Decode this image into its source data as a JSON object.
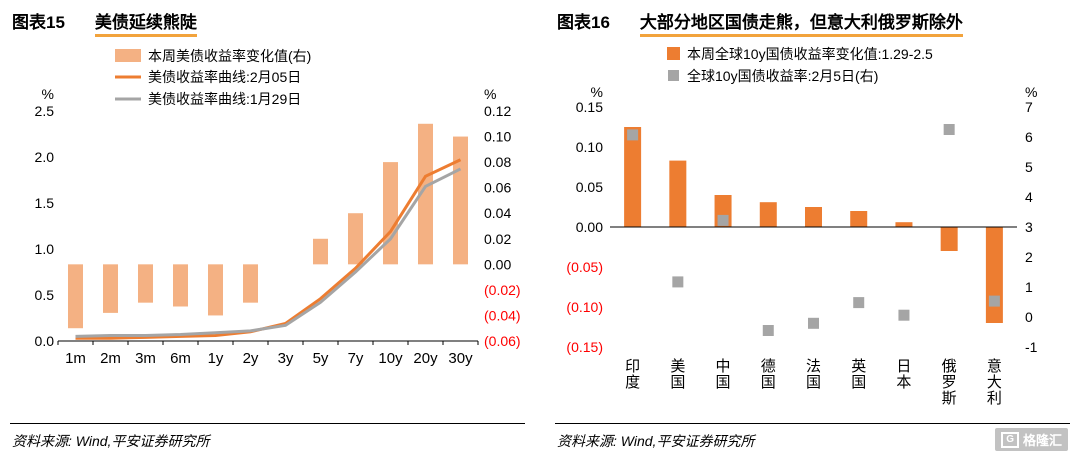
{
  "panels": [
    {
      "figure_label": "图表15",
      "title": "美债延续熊陡",
      "source": "资料来源: Wind,平安证券研究所"
    },
    {
      "figure_label": "图表16",
      "title": "大部分地区国债走熊，但意大利俄罗斯除外",
      "source": "资料来源: Wind,平安证券研究所"
    }
  ],
  "watermark": {
    "g": "G",
    "text": "格隆汇"
  },
  "chart_data": [
    {
      "type": "bar-line-combo",
      "title": "美债延续熊陡",
      "categories": [
        "1m",
        "2m",
        "3m",
        "6m",
        "1y",
        "2y",
        "3y",
        "5y",
        "7y",
        "10y",
        "20y",
        "30y"
      ],
      "bars": {
        "name": "本周美债收益率变化值(右)",
        "axis": "right",
        "color": "#F4B183",
        "values": [
          -0.05,
          -0.038,
          -0.03,
          -0.033,
          -0.04,
          -0.03,
          0,
          0.02,
          0.04,
          0.08,
          0.11,
          0.1
        ]
      },
      "lines": [
        {
          "name": "美债收益率曲线:2月05日",
          "color": "#ED7D31",
          "values": [
            0.03,
            0.03,
            0.04,
            0.05,
            0.06,
            0.1,
            0.19,
            0.46,
            0.79,
            1.19,
            1.79,
            1.97
          ]
        },
        {
          "name": "美债收益率曲线:1月29日",
          "color": "#A5A5A5",
          "values": [
            0.05,
            0.06,
            0.06,
            0.07,
            0.09,
            0.11,
            0.17,
            0.42,
            0.75,
            1.11,
            1.68,
            1.87
          ]
        }
      ],
      "left_axis": {
        "unit": "%",
        "min": 0,
        "max": 2.5,
        "ticks": [
          {
            "v": 2.5,
            "label": "2.5"
          },
          {
            "v": 2.0,
            "label": "2.0"
          },
          {
            "v": 1.5,
            "label": "1.5"
          },
          {
            "v": 1.0,
            "label": "1.0"
          },
          {
            "v": 0.5,
            "label": "0.5"
          },
          {
            "v": 0.0,
            "label": "0.0"
          }
        ]
      },
      "right_axis": {
        "unit": "%",
        "min": -0.06,
        "max": 0.12,
        "ticks": [
          {
            "v": 0.12,
            "label": "0.12"
          },
          {
            "v": 0.1,
            "label": "0.10"
          },
          {
            "v": 0.08,
            "label": "0.08"
          },
          {
            "v": 0.06,
            "label": "0.06"
          },
          {
            "v": 0.04,
            "label": "0.04"
          },
          {
            "v": 0.02,
            "label": "0.02"
          },
          {
            "v": 0.0,
            "label": "0.00"
          },
          {
            "v": -0.02,
            "label": "(0.02)",
            "negative": true
          },
          {
            "v": -0.04,
            "label": "(0.04)",
            "negative": true
          },
          {
            "v": -0.06,
            "label": "(0.06)",
            "negative": true
          }
        ]
      }
    },
    {
      "type": "bar-scatter-combo",
      "title": "大部分地区国债走熊，但意大利俄罗斯除外",
      "categories": [
        "印度",
        "美国",
        "中国",
        "德国",
        "法国",
        "英国",
        "日本",
        "俄罗斯",
        "意大利"
      ],
      "bars": {
        "name": "本周全球10y国债收益率变化值:1.29-2.5",
        "axis": "left",
        "color": "#ED7D31",
        "values": [
          0.125,
          0.083,
          0.04,
          0.031,
          0.025,
          0.02,
          0.006,
          -0.03,
          -0.12
        ]
      },
      "points": {
        "name": "全球10y国债收益率:2月5日(右)",
        "axis": "right",
        "color": "#A5A5A5",
        "values": [
          6.07,
          1.17,
          3.22,
          -0.45,
          -0.21,
          0.48,
          0.06,
          6.25,
          0.53
        ]
      },
      "left_axis": {
        "unit": "%",
        "min": -0.15,
        "max": 0.15,
        "ticks": [
          {
            "v": 0.15,
            "label": "0.15"
          },
          {
            "v": 0.1,
            "label": "0.10"
          },
          {
            "v": 0.05,
            "label": "0.05"
          },
          {
            "v": 0.0,
            "label": "0.00"
          },
          {
            "v": -0.05,
            "label": "(0.05)",
            "negative": true
          },
          {
            "v": -0.1,
            "label": "(0.10)",
            "negative": true
          },
          {
            "v": -0.15,
            "label": "(0.15)",
            "negative": true
          }
        ]
      },
      "right_axis": {
        "unit": "%",
        "min": -1,
        "max": 7,
        "ticks": [
          {
            "v": 7,
            "label": "7"
          },
          {
            "v": 6,
            "label": "6"
          },
          {
            "v": 5,
            "label": "5"
          },
          {
            "v": 4,
            "label": "4"
          },
          {
            "v": 3,
            "label": "3"
          },
          {
            "v": 2,
            "label": "2"
          },
          {
            "v": 1,
            "label": "1"
          },
          {
            "v": 0,
            "label": "0"
          },
          {
            "v": -1,
            "label": "-1"
          }
        ]
      }
    }
  ]
}
